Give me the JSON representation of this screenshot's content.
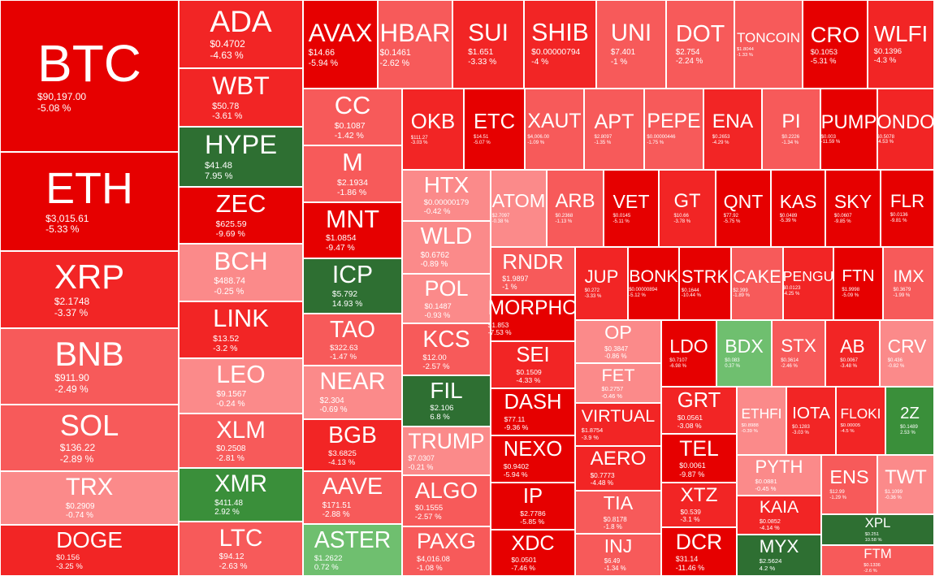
{
  "chart_data": {
    "type": "treemap",
    "title": "",
    "colors": {
      "strong_down": "#e60000",
      "mid_down": "#f22525",
      "light_down": "#f75a5a",
      "faint_down": "#fb8a8a",
      "faint_up": "#6fbf6f",
      "up": "#3a8f3a",
      "strong_up": "#2e6f32"
    },
    "items": [
      {
        "symbol": "BTC",
        "price": "$90,197.00",
        "change": "-5.08 %",
        "pct": -5.08,
        "weight": 40.3
      },
      {
        "symbol": "ETH",
        "price": "$3,015.61",
        "change": "-5.33 %",
        "pct": -5.33,
        "weight": 27.2
      },
      {
        "symbol": "XRP",
        "price": "$2.1748",
        "change": "-3.37 %",
        "pct": -3.37,
        "weight": 20.9
      },
      {
        "symbol": "BNB",
        "price": "$911.90",
        "change": "-2.49 %",
        "pct": -2.49,
        "weight": 20.9
      },
      {
        "symbol": "SOL",
        "price": "$136.22",
        "change": "-2.89 %",
        "pct": -2.89,
        "weight": 17.1
      },
      {
        "symbol": "TRX",
        "price": "$0.2909",
        "change": "-0.74 %",
        "pct": -0.74,
        "weight": 13.8
      },
      {
        "symbol": "DOGE",
        "price": "$0.156",
        "change": "-3.25 %",
        "pct": -3.25,
        "weight": 13.8
      },
      {
        "symbol": "ADA",
        "price": "$0.4702",
        "change": "-4.63 %",
        "pct": -4.63,
        "weight": 4.7
      },
      {
        "symbol": "WBT",
        "price": "$50.78",
        "change": "-3.61 %",
        "pct": -3.61,
        "weight": 4.1
      },
      {
        "symbol": "HYPE",
        "price": "$41.48",
        "change": "7.95 %",
        "pct": 7.95,
        "weight": 4.1
      },
      {
        "symbol": "ZEC",
        "price": "$625.59",
        "change": "-9.69 %",
        "pct": -9.69,
        "weight": 4.1
      },
      {
        "symbol": "BCH",
        "price": "$488.74",
        "change": "-0.25 %",
        "pct": -0.25,
        "weight": 3.6
      },
      {
        "symbol": "LINK",
        "price": "$13.52",
        "change": "-3.2 %",
        "pct": -3.2,
        "weight": 3.6
      },
      {
        "symbol": "LEO",
        "price": "$9.1567",
        "change": "-0.24 %",
        "pct": -0.24,
        "weight": 3.6
      },
      {
        "symbol": "XLM",
        "price": "$0.2508",
        "change": "-2.81 %",
        "pct": -2.81,
        "weight": 3.5
      },
      {
        "symbol": "XMR",
        "price": "$411.48",
        "change": "2.92 %",
        "pct": 2.92,
        "weight": 3.4
      },
      {
        "symbol": "LTC",
        "price": "$94.12",
        "change": "-2.63 %",
        "pct": -2.63,
        "weight": 3.4
      },
      {
        "symbol": "AVAX",
        "price": "$14.66",
        "change": "-5.94 %",
        "pct": -5.94,
        "weight": 1.7
      },
      {
        "symbol": "CC",
        "price": "$0.1087",
        "change": "-1.42 %",
        "pct": -1.42,
        "weight": 1.5
      },
      {
        "symbol": "M",
        "price": "$2.1934",
        "change": "-1.86 %",
        "pct": -1.86,
        "weight": 1.2
      },
      {
        "symbol": "MNT",
        "price": "$1.0854",
        "change": "-9.47 %",
        "pct": -9.47,
        "weight": 1.3
      },
      {
        "symbol": "ICP",
        "price": "$5.792",
        "change": "14.93 %",
        "pct": 14.93,
        "weight": 1.4
      },
      {
        "symbol": "TAO",
        "price": "$322.63",
        "change": "-1.47 %",
        "pct": -1.47,
        "weight": 1.2
      },
      {
        "symbol": "NEAR",
        "price": "$2.304",
        "change": "-0.69 %",
        "pct": -0.69,
        "weight": 1.2
      },
      {
        "symbol": "BGB",
        "price": "$3.6825",
        "change": "-4.13 %",
        "pct": -4.13,
        "weight": 1.2
      },
      {
        "symbol": "AAVE",
        "price": "$171.51",
        "change": "-2.88 %",
        "pct": -2.88,
        "weight": 1.2
      },
      {
        "symbol": "ASTER",
        "price": "$1.2622",
        "change": "0.72 %",
        "pct": 0.72,
        "weight": 1.2
      },
      {
        "symbol": "HBAR",
        "price": "$0.1461",
        "change": "-2.62 %",
        "pct": -2.62,
        "weight": 1.6
      },
      {
        "symbol": "SUI",
        "price": "$1.651",
        "change": "-3.33 %",
        "pct": -3.33,
        "weight": 1.4
      },
      {
        "symbol": "OKB",
        "price": "$111.27",
        "change": "-3.03 %",
        "pct": -3.03,
        "weight": 1.1
      },
      {
        "symbol": "ETC",
        "price": "$14.51",
        "change": "-5.07 %",
        "pct": -5.07,
        "weight": 1.0
      },
      {
        "symbol": "HTX",
        "price": "$0.00000179",
        "change": "-0.42 %",
        "pct": -0.42,
        "weight": 1.0
      },
      {
        "symbol": "WLD",
        "price": "$0.6762",
        "change": "-0.89 %",
        "pct": -0.89,
        "weight": 1.0
      },
      {
        "symbol": "POL",
        "price": "$0.1487",
        "change": "-0.93 %",
        "pct": -0.93,
        "weight": 1.0
      },
      {
        "symbol": "KCS",
        "price": "$12.00",
        "change": "-2.57 %",
        "pct": -2.57,
        "weight": 1.0
      },
      {
        "symbol": "FIL",
        "price": "$2.106",
        "change": "6.8 %",
        "pct": 6.8,
        "weight": 1.0
      },
      {
        "symbol": "TRUMP",
        "price": "$7.0307",
        "change": "-0.21 %",
        "pct": -0.21,
        "weight": 1.0
      },
      {
        "symbol": "ALGO",
        "price": "$0.1555",
        "change": "-2.57 %",
        "pct": -2.57,
        "weight": 1.0
      },
      {
        "symbol": "PAXG",
        "price": "$4,016.08",
        "change": "-1.08 %",
        "pct": -1.08,
        "weight": 1.0
      },
      {
        "symbol": "SHIB",
        "price": "$0.00000794",
        "change": "-4 %",
        "pct": -4,
        "weight": 1.0
      },
      {
        "symbol": "UNI",
        "price": "$7.401",
        "change": "-1 %",
        "pct": -1,
        "weight": 1.0
      },
      {
        "symbol": "DOT",
        "price": "$2.754",
        "change": "-2.24 %",
        "pct": -2.24,
        "weight": 1.0
      },
      {
        "symbol": "TONCOIN",
        "price": "$1.8044",
        "change": "-1.33 %",
        "pct": -1.33,
        "weight": 1.0
      },
      {
        "symbol": "CRO",
        "price": "$0.1053",
        "change": "-5.31 %",
        "pct": -5.31,
        "weight": 1.0
      },
      {
        "symbol": "WLFI",
        "price": "$0.1396",
        "change": "-4.3 %",
        "pct": -4.3,
        "weight": 1.0
      },
      {
        "symbol": "XAUT",
        "price": "$4,006.00",
        "change": "-1.09 %",
        "pct": -1.09,
        "weight": 1.0
      },
      {
        "symbol": "APT",
        "price": "$2.8097",
        "change": "-1.35 %",
        "pct": -1.35,
        "weight": 1.0
      },
      {
        "symbol": "PEPE",
        "price": "$0.00000446",
        "change": "-1.75 %",
        "pct": -1.75,
        "weight": 1.0
      },
      {
        "symbol": "ENA",
        "price": "$0.2653",
        "change": "-4.29 %",
        "pct": -4.29,
        "weight": 1.0
      },
      {
        "symbol": "PI",
        "price": "$0.2226",
        "change": "-1.34 %",
        "pct": -1.34,
        "weight": 1.0
      },
      {
        "symbol": "PUMP",
        "price": "$0.003",
        "change": "-11.59 %",
        "pct": -11.59,
        "weight": 1.0
      },
      {
        "symbol": "ONDO",
        "price": "$0.5078",
        "change": "-4.53 %",
        "pct": -4.53,
        "weight": 1.0
      },
      {
        "symbol": "ATOM",
        "price": "$2.7097",
        "change": "-0.38 %",
        "pct": -0.38,
        "weight": 0.8
      },
      {
        "symbol": "ARB",
        "price": "$0.2368",
        "change": "-1.13 %",
        "pct": -1.13,
        "weight": 0.8
      },
      {
        "symbol": "VET",
        "price": "$0.0145",
        "change": "-5.11 %",
        "pct": -5.11,
        "weight": 0.8
      },
      {
        "symbol": "GT",
        "price": "$10.66",
        "change": "-3.78 %",
        "pct": -3.78,
        "weight": 0.8
      },
      {
        "symbol": "QNT",
        "price": "$77.92",
        "change": "-5.75 %",
        "pct": -5.75,
        "weight": 0.8
      },
      {
        "symbol": "KAS",
        "price": "$0.0489",
        "change": "-5.39 %",
        "pct": -5.39,
        "weight": 0.8
      },
      {
        "symbol": "SKY",
        "price": "$0.0607",
        "change": "-9.85 %",
        "pct": -9.85,
        "weight": 0.8
      },
      {
        "symbol": "FLR",
        "price": "$0.0136",
        "change": "-9.81 %",
        "pct": -9.81,
        "weight": 0.8
      },
      {
        "symbol": "RNDR",
        "price": "$1.9897",
        "change": "-1 %",
        "pct": -1,
        "weight": 0.7
      },
      {
        "symbol": "MORPHO",
        "price": "$1.853",
        "change": "-7.53 %",
        "pct": -7.53,
        "weight": 0.7
      },
      {
        "symbol": "SEI",
        "price": "$0.1509",
        "change": "-4.33 %",
        "pct": -4.33,
        "weight": 0.7
      },
      {
        "symbol": "DASH",
        "price": "$77.11",
        "change": "-9.36 %",
        "pct": -9.36,
        "weight": 0.7
      },
      {
        "symbol": "NEXO",
        "price": "$0.9402",
        "change": "-5.94 %",
        "pct": -5.94,
        "weight": 0.7
      },
      {
        "symbol": "IP",
        "price": "$2.7786",
        "change": "-5.85 %",
        "pct": -5.85,
        "weight": 0.7
      },
      {
        "symbol": "XDC",
        "price": "$0.0501",
        "change": "-7.46 %",
        "pct": -7.46,
        "weight": 0.7
      },
      {
        "symbol": "JUP",
        "price": "$0.272",
        "change": "-3.33 %",
        "pct": -3.33,
        "weight": 0.6
      },
      {
        "symbol": "BONK",
        "price": "$0.00000894",
        "change": "-5.12 %",
        "pct": -5.12,
        "weight": 0.6
      },
      {
        "symbol": "STRK",
        "price": "$0.1644",
        "change": "-10.44 %",
        "pct": -10.44,
        "weight": 0.6
      },
      {
        "symbol": "CAKE",
        "price": "$2.399",
        "change": "-1.89 %",
        "pct": -1.89,
        "weight": 0.6
      },
      {
        "symbol": "PENGU",
        "price": "$0.0123",
        "change": "-4.25 %",
        "pct": -4.25,
        "weight": 0.6
      },
      {
        "symbol": "FTN",
        "price": "$1.9998",
        "change": "-5.09 %",
        "pct": -5.09,
        "weight": 0.6
      },
      {
        "symbol": "IMX",
        "price": "$0.3679",
        "change": "-1.99 %",
        "pct": -1.99,
        "weight": 0.6
      },
      {
        "symbol": "OP",
        "price": "$0.3847",
        "change": "-0.86 %",
        "pct": -0.86,
        "weight": 0.6
      },
      {
        "symbol": "FET",
        "price": "$0.2757",
        "change": "-0.46 %",
        "pct": -0.46,
        "weight": 0.6
      },
      {
        "symbol": "VIRTUAL",
        "price": "$1.8754",
        "change": "-3.9 %",
        "pct": -3.9,
        "weight": 0.6
      },
      {
        "symbol": "AERO",
        "price": "$0.7773",
        "change": "-4.48 %",
        "pct": -4.48,
        "weight": 0.6
      },
      {
        "symbol": "TIA",
        "price": "$0.8178",
        "change": "-1.8 %",
        "pct": -1.8,
        "weight": 0.6
      },
      {
        "symbol": "INJ",
        "price": "$6.49",
        "change": "-1.34 %",
        "pct": -1.34,
        "weight": 0.6
      },
      {
        "symbol": "LDO",
        "price": "$0.7107",
        "change": "-6.98 %",
        "pct": -6.98,
        "weight": 0.5
      },
      {
        "symbol": "BDX",
        "price": "$0.083",
        "change": "0.37 %",
        "pct": 0.37,
        "weight": 0.5
      },
      {
        "symbol": "STX",
        "price": "$0.3614",
        "change": "-2.46 %",
        "pct": -2.46,
        "weight": 0.5
      },
      {
        "symbol": "AB",
        "price": "$0.0067",
        "change": "-3.48 %",
        "pct": -3.48,
        "weight": 0.5
      },
      {
        "symbol": "CRV",
        "price": "$0.436",
        "change": "-0.82 %",
        "pct": -0.82,
        "weight": 0.5
      },
      {
        "symbol": "GRT",
        "price": "$0.0561",
        "change": "-3.08 %",
        "pct": -3.08,
        "weight": 0.5
      },
      {
        "symbol": "ETHFI",
        "price": "$0.8988",
        "change": "-0.39 %",
        "pct": -0.39,
        "weight": 0.4
      },
      {
        "symbol": "IOTA",
        "price": "$0.1283",
        "change": "-3.03 %",
        "pct": -3.03,
        "weight": 0.4
      },
      {
        "symbol": "FLOKI",
        "price": "$0.00005",
        "change": "-4.5 %",
        "pct": -4.5,
        "weight": 0.4
      },
      {
        "symbol": "2Z",
        "price": "$0.1489",
        "change": "2.53 %",
        "pct": 2.53,
        "weight": 0.4
      },
      {
        "symbol": "TEL",
        "price": "$0.0061",
        "change": "-9.87 %",
        "pct": -9.87,
        "weight": 0.4
      },
      {
        "symbol": "PYTH",
        "price": "$0.0881",
        "change": "-0.45 %",
        "pct": -0.45,
        "weight": 0.4
      },
      {
        "symbol": "ENS",
        "price": "$12.99",
        "change": "-1.29 %",
        "pct": -1.29,
        "weight": 0.3
      },
      {
        "symbol": "TWT",
        "price": "$1.1099",
        "change": "-0.36 %",
        "pct": -0.36,
        "weight": 0.3
      },
      {
        "symbol": "XTZ",
        "price": "$0.539",
        "change": "-3.1 %",
        "pct": -3.1,
        "weight": 0.4
      },
      {
        "symbol": "KAIA",
        "price": "$0.0852",
        "change": "-4.14 %",
        "pct": -4.14,
        "weight": 0.4
      },
      {
        "symbol": "XPL",
        "price": "$0.251",
        "change": "10.58 %",
        "pct": 10.58,
        "weight": 0.3
      },
      {
        "symbol": "FTM",
        "price": "$0.1336",
        "change": "-2.6 %",
        "pct": -2.6,
        "weight": 0.2
      },
      {
        "symbol": "DCR",
        "price": "$31.14",
        "change": "-11.46 %",
        "pct": -11.46,
        "weight": 0.4
      },
      {
        "symbol": "MYX",
        "price": "$2.5624",
        "change": "4.2 %",
        "pct": 4.2,
        "weight": 0.4
      }
    ]
  }
}
